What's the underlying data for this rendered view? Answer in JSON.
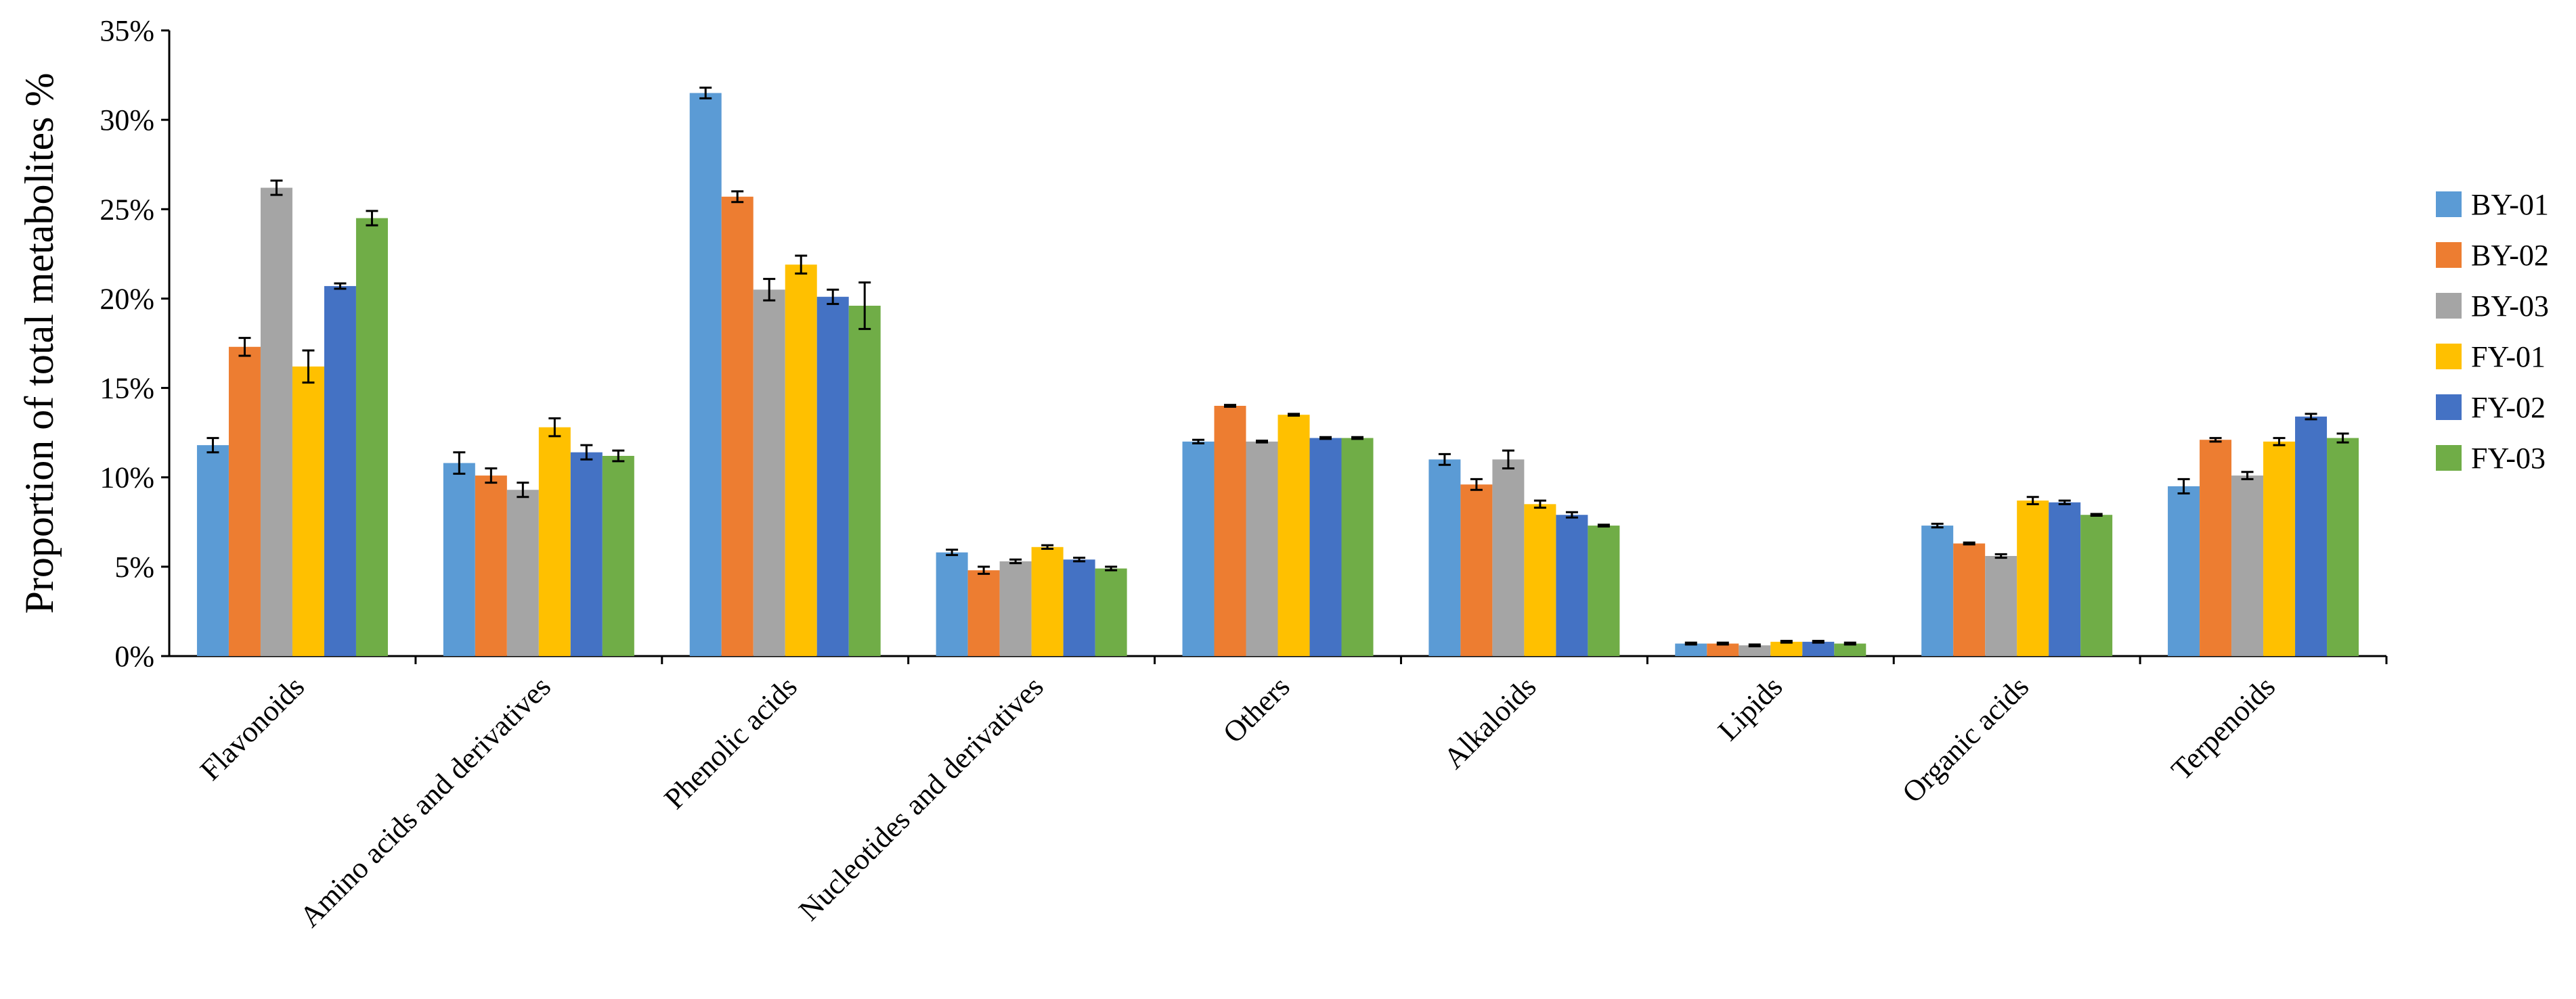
{
  "chart_data": {
    "type": "bar",
    "title": "",
    "xlabel": "",
    "ylabel": "Proportion of total metabolites %",
    "ylim": [
      0,
      35
    ],
    "yticks": [
      "0%",
      "5%",
      "10%",
      "15%",
      "20%",
      "25%",
      "30%",
      "35%"
    ],
    "grid": false,
    "legend_position": "right",
    "categories": [
      "Flavonoids",
      "Amino acids and derivatives",
      "Phenolic acids",
      "Nucleotides and derivatives",
      "Others",
      "Alkaloids",
      "Lipids",
      "Organic acids",
      "Terpenoids"
    ],
    "series": [
      {
        "name": "BY-01",
        "color": "#5B9BD5",
        "values": [
          11.8,
          10.8,
          31.5,
          5.8,
          12.0,
          11.0,
          0.7,
          7.3,
          9.5
        ],
        "errors": [
          0.4,
          0.6,
          0.3,
          0.15,
          0.1,
          0.3,
          0.05,
          0.1,
          0.4
        ]
      },
      {
        "name": "BY-02",
        "color": "#ED7D31",
        "values": [
          17.3,
          10.1,
          25.7,
          4.8,
          14.0,
          9.6,
          0.7,
          6.3,
          12.1
        ],
        "errors": [
          0.5,
          0.4,
          0.3,
          0.2,
          0.05,
          0.3,
          0.05,
          0.05,
          0.1
        ]
      },
      {
        "name": "BY-03",
        "color": "#A5A5A5",
        "values": [
          26.2,
          9.3,
          20.5,
          5.3,
          12.0,
          11.0,
          0.6,
          5.6,
          10.1
        ],
        "errors": [
          0.4,
          0.4,
          0.6,
          0.1,
          0.05,
          0.5,
          0.05,
          0.1,
          0.2
        ]
      },
      {
        "name": "FY-01",
        "color": "#FFC000",
        "values": [
          16.2,
          12.8,
          21.9,
          6.1,
          13.5,
          8.5,
          0.8,
          8.7,
          12.0
        ],
        "errors": [
          0.9,
          0.5,
          0.5,
          0.1,
          0.05,
          0.2,
          0.05,
          0.2,
          0.2
        ]
      },
      {
        "name": "FY-02",
        "color": "#4472C4",
        "values": [
          20.7,
          11.4,
          20.1,
          5.4,
          12.2,
          7.9,
          0.8,
          8.6,
          13.4
        ],
        "errors": [
          0.15,
          0.4,
          0.4,
          0.1,
          0.05,
          0.15,
          0.05,
          0.1,
          0.15
        ]
      },
      {
        "name": "FY-03",
        "color": "#70AD47",
        "values": [
          24.5,
          11.2,
          19.6,
          4.9,
          12.2,
          7.3,
          0.7,
          7.9,
          12.2
        ],
        "errors": [
          0.4,
          0.3,
          1.3,
          0.1,
          0.05,
          0.05,
          0.05,
          0.05,
          0.25
        ]
      }
    ]
  }
}
